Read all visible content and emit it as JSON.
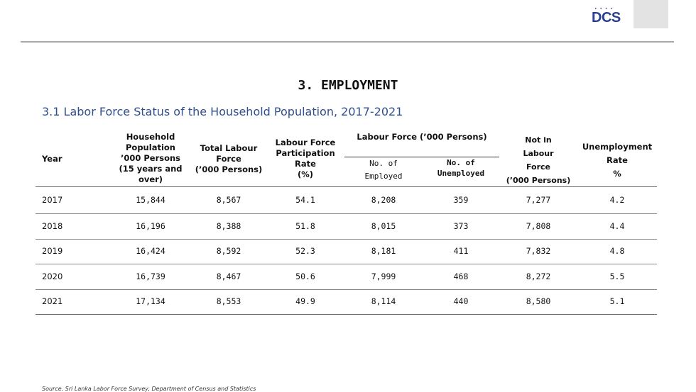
{
  "header": {
    "logo_text": "DCS",
    "logo_dots": "• • • •"
  },
  "section_title": "3. EMPLOYMENT",
  "table_title": "3.1  Labor Force Status of the Household Population, 2017-2021",
  "table": {
    "columns": {
      "year": "Year",
      "household_population": [
        "Household",
        "Population",
        "’000 Persons",
        "(15  years and",
        "over)"
      ],
      "total_labour_force": [
        "Total Labour",
        "Force",
        "(’000 Persons)"
      ],
      "participation_rate": [
        "Labour Force",
        "Participation",
        "Rate",
        "(%)"
      ],
      "labour_force_group": "Labour Force (’000 Persons)",
      "employed": [
        "No. of",
        "Employed"
      ],
      "unemployed": [
        "No. of",
        "Unemployed"
      ],
      "not_in_labour_force": [
        "Not  in",
        "Labour",
        "Force",
        "(’000 Persons)"
      ],
      "unemployment_rate": [
        "Unemployment",
        "Rate",
        "%"
      ]
    },
    "rows": [
      {
        "year": "2017",
        "household_population": "15,844",
        "total_labour_force": "8,567",
        "participation_rate": "54.1",
        "employed": "8,208",
        "unemployed": "359",
        "not_in_labour_force": "7,277",
        "unemployment_rate": "4.2"
      },
      {
        "year": "2018",
        "household_population": "16,196",
        "total_labour_force": "8,388",
        "participation_rate": "51.8",
        "employed": "8,015",
        "unemployed": "373",
        "not_in_labour_force": "7,808",
        "unemployment_rate": "4.4"
      },
      {
        "year": "2019",
        "household_population": "16,424",
        "total_labour_force": "8,592",
        "participation_rate": "52.3",
        "employed": "8,181",
        "unemployed": "411",
        "not_in_labour_force": "7,832",
        "unemployment_rate": "4.8"
      },
      {
        "year": "2020",
        "household_population": "16,739",
        "total_labour_force": "8,467",
        "participation_rate": "50.6",
        "employed": "7,999",
        "unemployed": "468",
        "not_in_labour_force": "8,272",
        "unemployment_rate": "5.5"
      },
      {
        "year": "2021",
        "household_population": "17,134",
        "total_labour_force": "8,553",
        "participation_rate": "49.9",
        "employed": "8,114",
        "unemployed": "440",
        "not_in_labour_force": "8,580",
        "unemployment_rate": "5.1"
      }
    ]
  },
  "source": "Source. Sri Lanka Labor Force Survey, Department of Census and Statistics"
}
